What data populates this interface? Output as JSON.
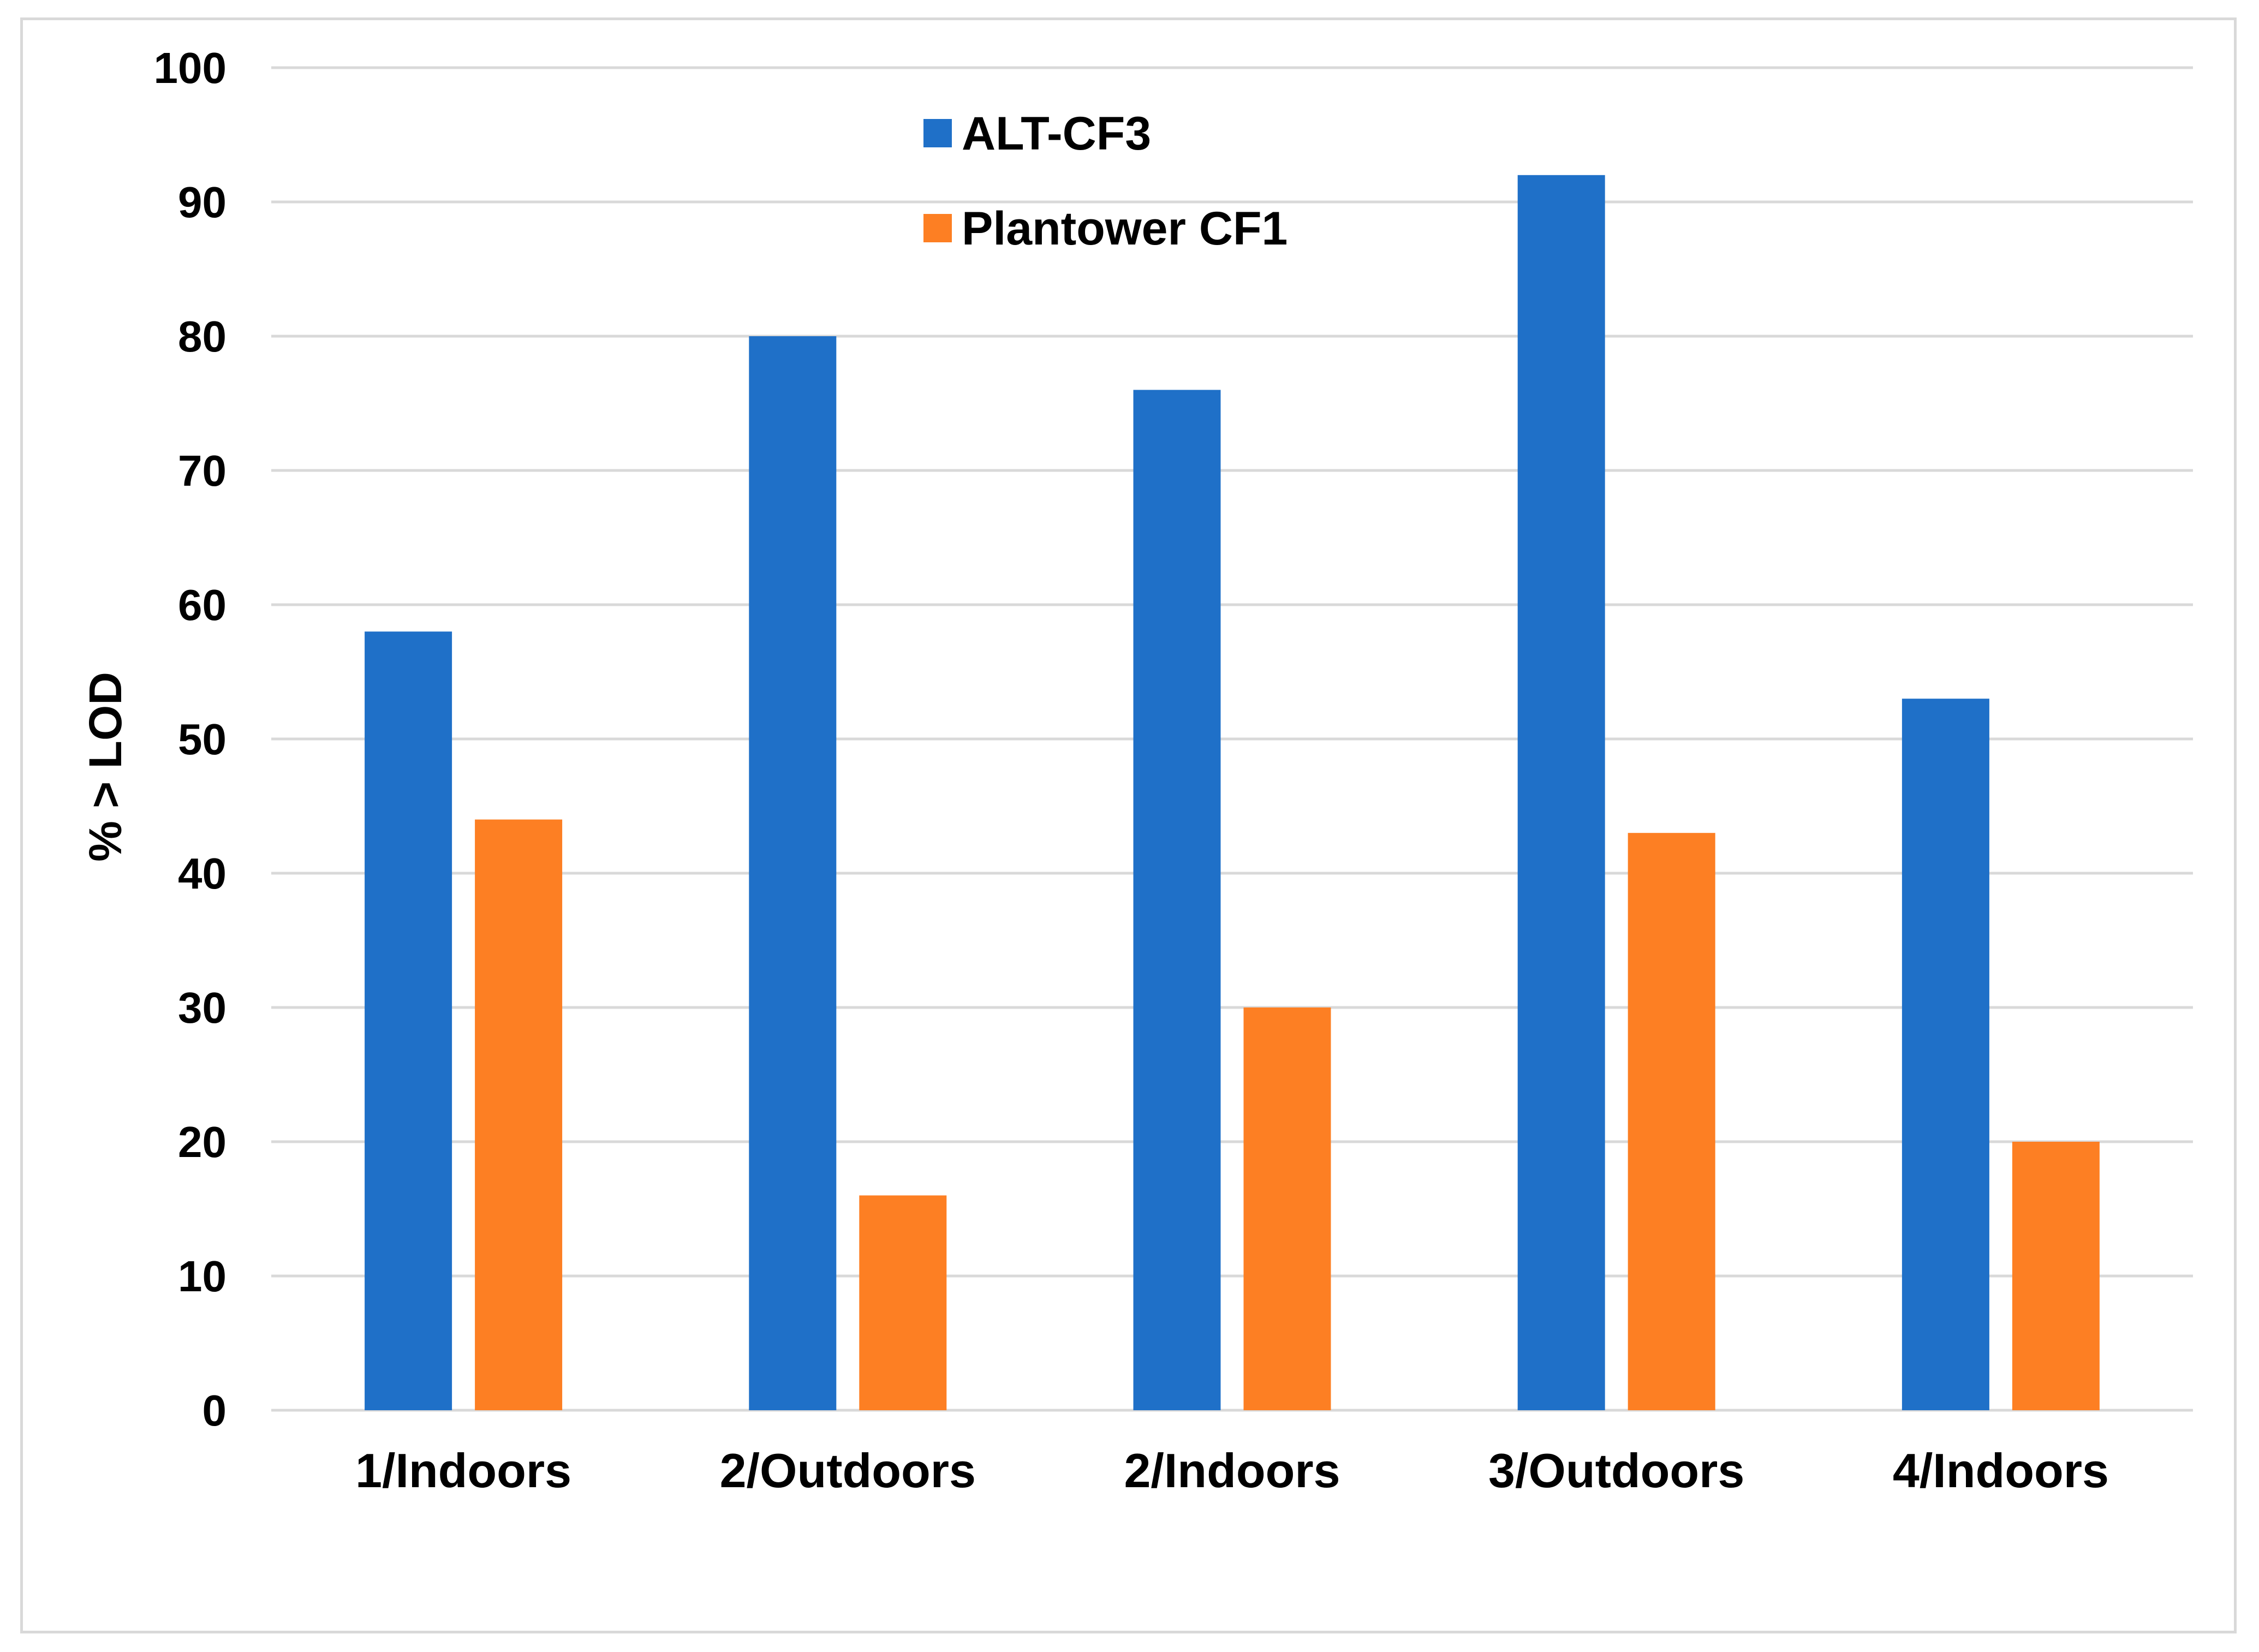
{
  "chart_data": {
    "type": "bar",
    "title": "",
    "xlabel": "",
    "ylabel": "% > LOD",
    "categories": [
      "1/Indoors",
      "2/Outdoors",
      "2/Indoors",
      "3/Outdoors",
      "4/Indoors"
    ],
    "series": [
      {
        "name": "ALT-CF3",
        "color": "#1f70c8",
        "values": [
          58,
          80,
          76,
          92,
          53
        ]
      },
      {
        "name": "Plantower CF1",
        "color": "#fd7f23",
        "values": [
          44,
          16,
          30,
          43,
          20
        ]
      }
    ],
    "ylim": [
      0,
      100
    ],
    "yticks": [
      0,
      10,
      20,
      30,
      40,
      50,
      60,
      70,
      80,
      90,
      100
    ],
    "grid": true,
    "gridline_color": "#d9d9d9",
    "legend": "top-center"
  }
}
